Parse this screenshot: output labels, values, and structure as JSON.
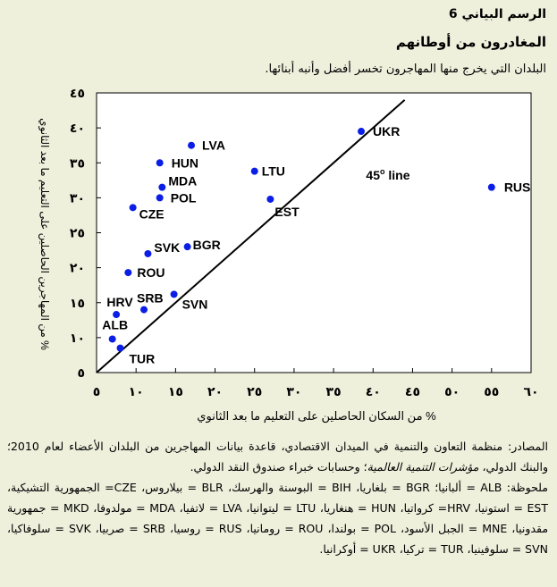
{
  "figure_number": "الرسم البياني 6",
  "title": "المغادرون من أوطانهم",
  "subtitle": "البلدان التي يخرج منها المهاجرون تخسر أفضل وأنبه أبنائها.",
  "chart_data": {
    "type": "scatter",
    "xlabel": "% من السكان الحاصلين على التعليم ما بعد الثانوي",
    "ylabel": "% من المهاجرين الحاصلين على التعليم ما بعد الثانوي",
    "xlim": [
      5,
      60
    ],
    "ylim": [
      5,
      45
    ],
    "xticks": [
      5,
      10,
      15,
      20,
      25,
      30,
      35,
      40,
      45,
      50,
      55,
      60
    ],
    "yticks": [
      5,
      10,
      15,
      20,
      25,
      30,
      35,
      40,
      45
    ],
    "tick_labels_x": [
      "٥",
      "١٠",
      "١٥",
      "٢٠",
      "٢٥",
      "٣٠",
      "٣٥",
      "٤٠",
      "٤٥",
      "٥٠",
      "٥٥",
      "٦٠"
    ],
    "tick_labels_y": [
      "٥",
      "١٠",
      "١٥",
      "٢٠",
      "٢٥",
      "٣٠",
      "٣٥",
      "٤٠",
      "٤٥"
    ],
    "reference_line": {
      "label": "45° line",
      "label_main": "45",
      "label_sup": "o",
      "label_suffix": " line",
      "from": [
        5,
        5
      ],
      "to": [
        44,
        44
      ]
    },
    "point_color": "#0a1ee6",
    "grid": false,
    "points": [
      {
        "label": "UKR",
        "x": 38.5,
        "y": 39.5
      },
      {
        "label": "RUS",
        "x": 55.0,
        "y": 31.5
      },
      {
        "label": "LVA",
        "x": 17.0,
        "y": 37.5
      },
      {
        "label": "HUN",
        "x": 13.0,
        "y": 35.0
      },
      {
        "label": "LTU",
        "x": 25.0,
        "y": 33.8
      },
      {
        "label": "MDA",
        "x": 13.3,
        "y": 31.5
      },
      {
        "label": "POL",
        "x": 13.0,
        "y": 30.0
      },
      {
        "label": "EST",
        "x": 27.0,
        "y": 29.8
      },
      {
        "label": "CZE",
        "x": 9.6,
        "y": 28.6
      },
      {
        "label": "BGR",
        "x": 16.5,
        "y": 23.0
      },
      {
        "label": "SVK",
        "x": 11.5,
        "y": 22.0
      },
      {
        "label": "ROU",
        "x": 9.0,
        "y": 19.3
      },
      {
        "label": "SVN",
        "x": 14.8,
        "y": 16.2
      },
      {
        "label": "SRB",
        "x": 11.0,
        "y": 14.0
      },
      {
        "label": "HRV",
        "x": 7.5,
        "y": 13.3
      },
      {
        "label": "ALB",
        "x": 7.0,
        "y": 9.8
      },
      {
        "label": "TUR",
        "x": 8.0,
        "y": 8.5
      }
    ]
  },
  "notes": {
    "source_prefix": "المصادر: منظمة التعاون والتنمية في الميدان الاقتصادي، قاعدة بيانات المهاجرين من البلدان الأعضاء لعام 2010؛ والبنك الدولي، ",
    "source_italic": "مؤشرات التنمية العالمية",
    "source_suffix": "؛ وحسابات خبراء صندوق النقد الدولي.",
    "legend": "ملحوظة: ALB = ألبانيا؛ BGR = بلغاريا، BIH = البوسنة والهرسك، BLR = بيلاروس، CZE= الجمهورية التشيكية، EST = استونيا، HRV= كرواتيا، HUN = هنغاريا، LTU = ليتوانيا، LVA = لاتفيا، MDA = مولدوفا، MKD = جمهورية مقدونيا، MNE = الجبل الأسود، POL = بولندا، ROU = رومانيا، RUS = روسيا، SRB = صربيا، SVK = سلوفاكيا، SVN = سلوفينيا، TUR = تركيا، UKR = أوكرانيا."
  }
}
